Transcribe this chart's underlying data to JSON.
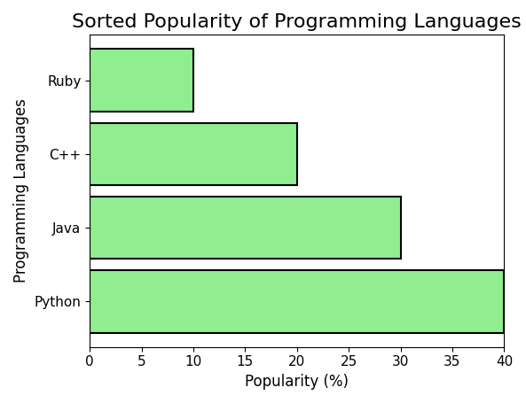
{
  "title": "Sorted Popularity of Programming Languages",
  "languages": [
    "Python",
    "Java",
    "C++",
    "Ruby"
  ],
  "popularity": [
    40,
    30,
    20,
    10
  ],
  "bar_color": "#90EE90",
  "bar_edgecolor": "#000000",
  "xlabel": "Popularity (%)",
  "ylabel": "Programming Languages",
  "xlim": [
    0,
    40
  ],
  "xticks": [
    0,
    5,
    10,
    15,
    20,
    25,
    30,
    35,
    40
  ],
  "title_fontsize": 16,
  "label_fontsize": 12,
  "tick_fontsize": 11,
  "bar_height": 0.85
}
